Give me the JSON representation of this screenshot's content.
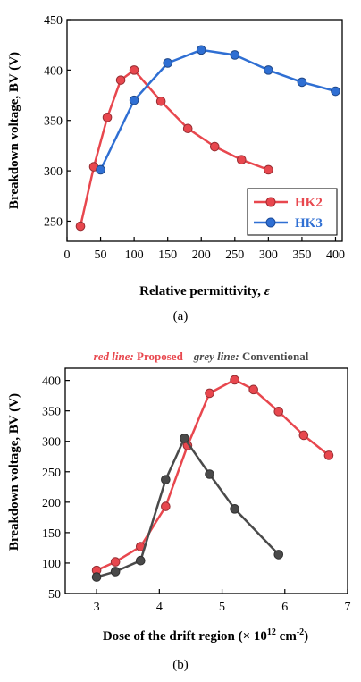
{
  "chart_data": [
    {
      "type": "line",
      "panel_label": "(a)",
      "xlabel": "Relative permittivity, ",
      "xlabel_symbol": "ε",
      "ylabel": "Breakdown voltage, BV (V)",
      "xlim": [
        0,
        410
      ],
      "ylim": [
        230,
        450
      ],
      "xticks": [
        "0",
        "50",
        "100",
        "150",
        "200",
        "250",
        "300",
        "350",
        "400"
      ],
      "xtick_values": [
        0,
        50,
        100,
        150,
        200,
        250,
        300,
        350,
        400
      ],
      "yticks": [
        "250",
        "300",
        "350",
        "400",
        "450"
      ],
      "ytick_values": [
        250,
        300,
        350,
        400,
        450
      ],
      "legend_position": "bottom-right",
      "series": [
        {
          "name": "HK2",
          "color": "#e8474e",
          "x": [
            20,
            40,
            60,
            80,
            100,
            140,
            180,
            220,
            260,
            300
          ],
          "y": [
            245,
            304,
            353,
            390,
            400,
            369,
            342,
            324,
            311,
            301
          ]
        },
        {
          "name": "HK3",
          "color": "#2f6fd3",
          "x": [
            50,
            100,
            150,
            200,
            250,
            300,
            350,
            400
          ],
          "y": [
            301,
            370,
            407,
            420,
            415,
            400,
            388,
            379
          ]
        }
      ]
    },
    {
      "type": "line",
      "panel_label": "(b)",
      "xlabel": "Dose of the drift region (× 10",
      "xlabel_sup": "12",
      "xlabel_tail": " cm",
      "xlabel_sup2": "-2",
      "xlabel_end": ")",
      "ylabel": "Breakdown voltage, BV (V)",
      "xlim": [
        2.5,
        7
      ],
      "ylim": [
        50,
        420
      ],
      "xticks": [
        "3",
        "4",
        "5",
        "6",
        "7"
      ],
      "xtick_values": [
        3,
        4,
        5,
        6,
        7
      ],
      "yticks": [
        "50",
        "100",
        "150",
        "200",
        "250",
        "300",
        "350",
        "400"
      ],
      "ytick_values": [
        50,
        100,
        150,
        200,
        250,
        300,
        350,
        400
      ],
      "note": {
        "red_label": "red line:",
        "red_text": " Proposed",
        "grey_label": "grey line:",
        "grey_text": " Conventional"
      },
      "series": [
        {
          "name": "Proposed",
          "color": "#e8474e",
          "x": [
            3.0,
            3.3,
            3.7,
            4.1,
            4.45,
            4.8,
            5.2,
            5.5,
            5.9,
            6.3,
            6.7
          ],
          "y": [
            88,
            102,
            127,
            193,
            293,
            379,
            401,
            385,
            349,
            310,
            277
          ]
        },
        {
          "name": "Conventional",
          "color": "#4a4a4a",
          "x": [
            3.0,
            3.3,
            3.7,
            4.1,
            4.4,
            4.8,
            5.2,
            5.9
          ],
          "y": [
            77,
            86,
            104,
            237,
            305,
            246,
            189,
            114
          ]
        }
      ]
    }
  ]
}
